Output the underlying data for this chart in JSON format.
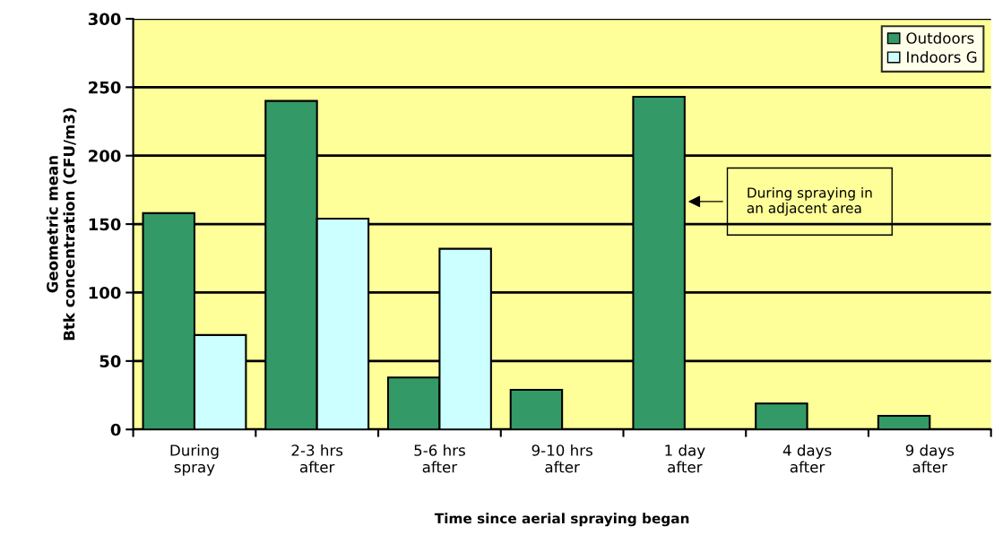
{
  "chart_data": {
    "type": "bar",
    "categories": [
      "During\nspray",
      "2-3 hrs\nafter",
      "5-6 hrs\nafter",
      "9-10 hrs\nafter",
      "1 day\nafter",
      "4 days\nafter",
      "9 days\nafter"
    ],
    "series": [
      {
        "name": "Outdoors",
        "color": "#339966",
        "values": [
          158,
          240,
          38,
          29,
          243,
          19,
          10
        ]
      },
      {
        "name": "Indoors G",
        "color": "#ccffff",
        "values": [
          69,
          154,
          132,
          null,
          null,
          null,
          null
        ]
      }
    ],
    "xlabel": "Time since aerial spraying began",
    "ylabel": "Geometric mean\nBtk concentration (CFU/m3)",
    "ylim": [
      0,
      300
    ],
    "yticks": [
      0,
      50,
      100,
      150,
      200,
      250,
      300
    ],
    "grid": "y",
    "legend": "top right",
    "annotations": [
      "During spraying in\nan adjacent area"
    ]
  }
}
